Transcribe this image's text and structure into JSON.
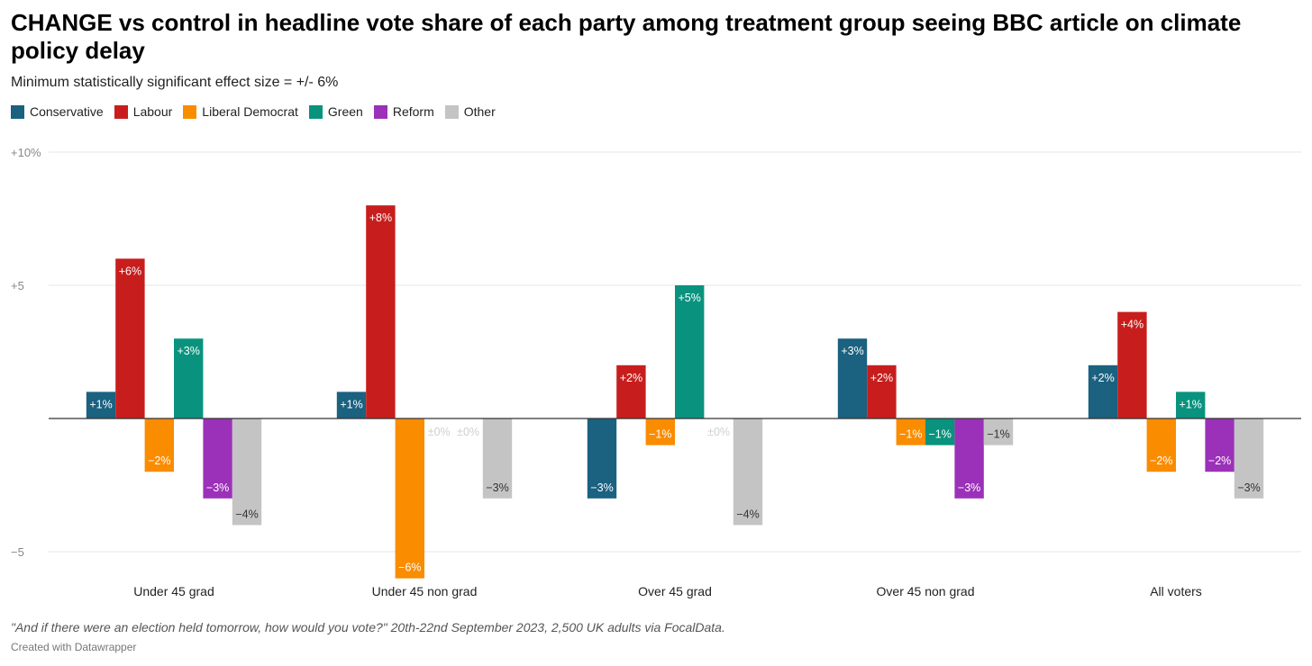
{
  "title": "CHANGE vs control in headline vote share of each party among treatment group seeing BBC article on climate policy delay",
  "subtitle": "Minimum statistically significant effect size = +/- 6%",
  "notes": "\"And if there were an election held tomorrow, how would you vote?\" 20th-22nd September 2023, 2,500 UK adults via FocalData.",
  "credit": "Created with Datawrapper",
  "chart_data": {
    "type": "bar",
    "categories": [
      "Under 45 grad",
      "Under 45 non grad",
      "Over 45 grad",
      "Over 45 non grad",
      "All voters"
    ],
    "ylim": [
      -6,
      10
    ],
    "yticks": [
      {
        "value": 10,
        "label": "+10%"
      },
      {
        "value": 5,
        "label": "+5"
      },
      {
        "value": -5,
        "label": "−5"
      }
    ],
    "grid": true,
    "legend_position": "top-left",
    "series": [
      {
        "name": "Conservative",
        "color": "#1b6180",
        "values": [
          1,
          1,
          -3,
          3,
          2
        ],
        "labels": [
          "+1%",
          "+1%",
          "−3%",
          "+3%",
          "+2%"
        ]
      },
      {
        "name": "Labour",
        "color": "#c71e1d",
        "values": [
          6,
          8,
          2,
          2,
          4
        ],
        "labels": [
          "+6%",
          "+8%",
          "+2%",
          "+2%",
          "+4%"
        ]
      },
      {
        "name": "Liberal Democrat",
        "color": "#fa8c00",
        "values": [
          -2,
          -6,
          -1,
          -1,
          -2
        ],
        "labels": [
          "−2%",
          "−6%",
          "−1%",
          "−1%",
          "−2%"
        ]
      },
      {
        "name": "Green",
        "color": "#09937e",
        "values": [
          3,
          0,
          5,
          -1,
          1
        ],
        "labels": [
          "+3%",
          "±0%",
          "+5%",
          "−1%",
          "+1%"
        ]
      },
      {
        "name": "Reform",
        "color": "#9b31b8",
        "values": [
          -3,
          0,
          0,
          -3,
          -2
        ],
        "labels": [
          "−3%",
          "±0%",
          "±0%",
          "−3%",
          "−2%"
        ]
      },
      {
        "name": "Other",
        "color": "#c4c4c4",
        "values": [
          -4,
          -3,
          -4,
          -1,
          -3
        ],
        "labels": [
          "−4%",
          "−3%",
          "−4%",
          "−1%",
          "−3%"
        ]
      }
    ]
  }
}
